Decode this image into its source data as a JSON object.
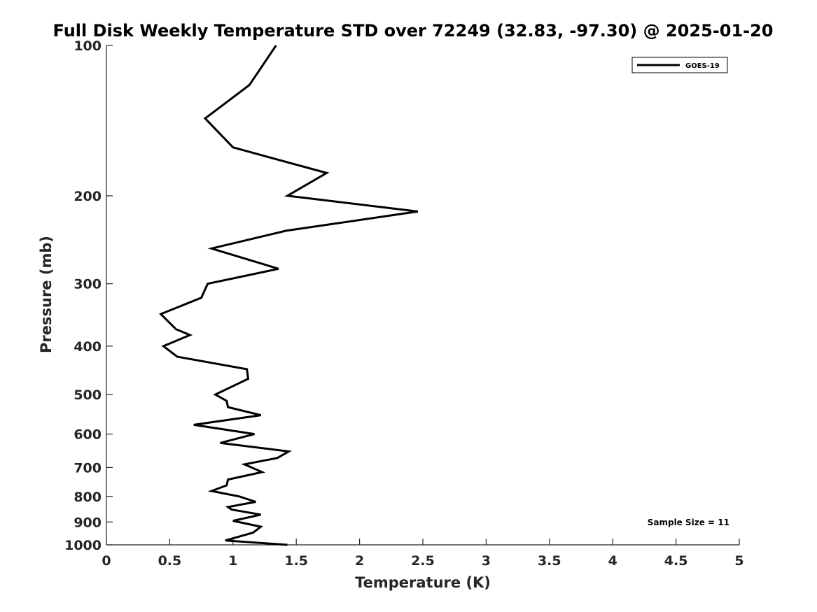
{
  "chart_data": {
    "type": "line",
    "title": "Full Disk Weekly Temperature STD over 72249 (32.83, -97.30) @ 2025-01-20",
    "xlabel": "Temperature (K)",
    "ylabel": "Pressure (mb)",
    "xlim": [
      0,
      5
    ],
    "ylim": [
      100,
      1000
    ],
    "y_scale": "log",
    "y_direction": "reversed",
    "x_ticks": [
      "0",
      "0.5",
      "1",
      "1.5",
      "2",
      "2.5",
      "3",
      "3.5",
      "4",
      "4.5",
      "5"
    ],
    "y_ticks": [
      "100",
      "200",
      "300",
      "400",
      "500",
      "600",
      "700",
      "800",
      "900",
      "1000"
    ],
    "grid": false,
    "legend_position": "top-right",
    "annotation": "Sample Size = 11",
    "series": [
      {
        "name": "GOES-19",
        "color": "#000000",
        "x": [
          1.34,
          1.13,
          0.78,
          1.0,
          1.74,
          1.43,
          2.46,
          1.42,
          0.83,
          1.36,
          0.8,
          0.75,
          0.43,
          0.55,
          0.66,
          0.45,
          0.56,
          1.11,
          1.12,
          0.86,
          0.95,
          0.96,
          1.22,
          0.69,
          1.17,
          0.9,
          1.44,
          1.35,
          1.09,
          1.23,
          0.96,
          0.95,
          0.83,
          1.05,
          1.18,
          0.96,
          0.99,
          1.22,
          1.0,
          1.22,
          1.16,
          0.94,
          1.43
        ],
        "y": [
          100,
          120,
          140,
          160,
          180,
          200,
          215,
          235,
          255,
          280,
          300,
          320,
          345,
          370,
          380,
          400,
          420,
          445,
          465,
          500,
          515,
          530,
          550,
          575,
          600,
          625,
          650,
          670,
          690,
          715,
          740,
          760,
          780,
          800,
          820,
          840,
          850,
          870,
          895,
          920,
          945,
          980,
          1000
        ]
      }
    ]
  }
}
